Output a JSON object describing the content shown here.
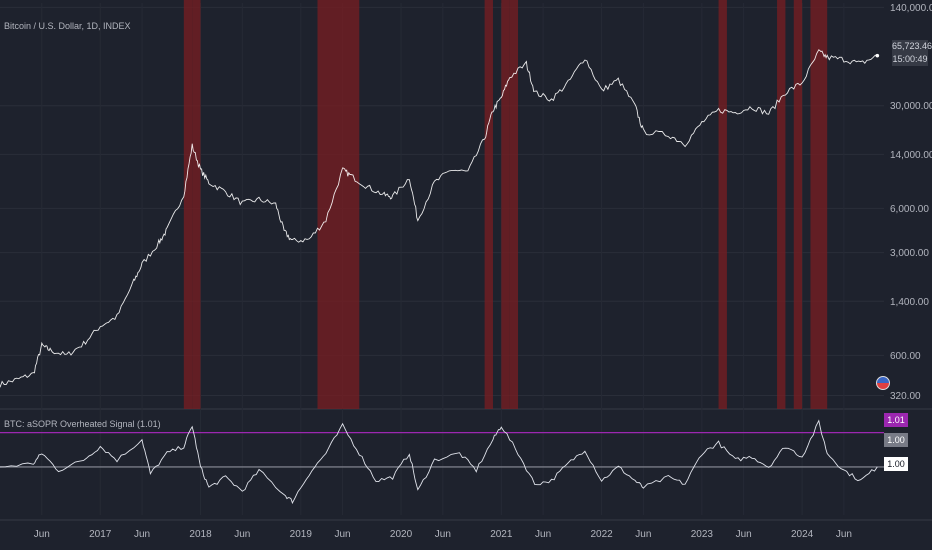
{
  "main_title": "Bitcoin / U.S. Dollar, 1D, INDEX",
  "indicator_title": "BTC: aSOPR Overheated Signal (1.01)",
  "price_tag": {
    "price": "65,723.46",
    "countdown": "15:00:49"
  },
  "indicator_tags": [
    "1.01",
    "1.00",
    "1.00"
  ],
  "colors": {
    "background": "#1e222d",
    "price_line": "#ffffff",
    "signal_band": "#7a1e22",
    "threshold_line": "#9c27b0",
    "baseline": "#787b86"
  },
  "chart_data": [
    {
      "type": "line",
      "name": "price",
      "scale": "log",
      "y_ticks": [
        "320.00",
        "600.00",
        "1,400.00",
        "3,000.00",
        "6,000.00",
        "14,000.00",
        "30,000.00",
        "140,000.00"
      ],
      "y_tick_values": [
        320,
        600,
        1400,
        3000,
        6000,
        14000,
        30000,
        140000
      ],
      "x_ticks": [
        "Jun",
        "2017",
        "Jun",
        "2018",
        "Jun",
        "2019",
        "Jun",
        "2020",
        "Jun",
        "2021",
        "Jun",
        "2022",
        "Jun",
        "2023",
        "Jun",
        "2024",
        "Jun"
      ],
      "x_tick_dates": [
        "2016-06",
        "2017-01",
        "2017-06",
        "2018-01",
        "2018-06",
        "2019-01",
        "2019-06",
        "2020-01",
        "2020-06",
        "2021-01",
        "2021-06",
        "2022-01",
        "2022-06",
        "2023-01",
        "2023-06",
        "2024-01",
        "2024-06"
      ],
      "x_range": [
        "2016-01",
        "2024-10"
      ],
      "points": [
        [
          "2016-01",
          380
        ],
        [
          "2016-03",
          410
        ],
        [
          "2016-05",
          450
        ],
        [
          "2016-06",
          700
        ],
        [
          "2016-07",
          650
        ],
        [
          "2016-09",
          600
        ],
        [
          "2016-11",
          720
        ],
        [
          "2017-01",
          950
        ],
        [
          "2017-03",
          1100
        ],
        [
          "2017-05",
          1900
        ],
        [
          "2017-06",
          2500
        ],
        [
          "2017-08",
          3500
        ],
        [
          "2017-09",
          4300
        ],
        [
          "2017-11",
          7500
        ],
        [
          "2017-12",
          16000
        ],
        [
          "2018-01",
          11000
        ],
        [
          "2018-02",
          9000
        ],
        [
          "2018-04",
          7800
        ],
        [
          "2018-06",
          6500
        ],
        [
          "2018-08",
          6900
        ],
        [
          "2018-10",
          6400
        ],
        [
          "2018-11",
          4200
        ],
        [
          "2018-12",
          3600
        ],
        [
          "2019-02",
          3700
        ],
        [
          "2019-04",
          5000
        ],
        [
          "2019-06",
          11000
        ],
        [
          "2019-07",
          10000
        ],
        [
          "2019-09",
          8400
        ],
        [
          "2019-11",
          7400
        ],
        [
          "2019-12",
          7200
        ],
        [
          "2020-02",
          9700
        ],
        [
          "2020-03",
          5000
        ],
        [
          "2020-05",
          9000
        ],
        [
          "2020-07",
          11000
        ],
        [
          "2020-09",
          10600
        ],
        [
          "2020-11",
          18000
        ],
        [
          "2020-12",
          28000
        ],
        [
          "2021-01",
          34000
        ],
        [
          "2021-02",
          47000
        ],
        [
          "2021-04",
          58000
        ],
        [
          "2021-05",
          37000
        ],
        [
          "2021-07",
          33000
        ],
        [
          "2021-09",
          43000
        ],
        [
          "2021-11",
          64000
        ],
        [
          "2022-01",
          38000
        ],
        [
          "2022-03",
          45000
        ],
        [
          "2022-05",
          30000
        ],
        [
          "2022-06",
          20000
        ],
        [
          "2022-09",
          19000
        ],
        [
          "2022-11",
          16500
        ],
        [
          "2023-01",
          23000
        ],
        [
          "2023-03",
          28000
        ],
        [
          "2023-05",
          27000
        ],
        [
          "2023-07",
          29500
        ],
        [
          "2023-09",
          26500
        ],
        [
          "2023-11",
          37000
        ],
        [
          "2024-01",
          43000
        ],
        [
          "2024-03",
          70000
        ],
        [
          "2024-04",
          64000
        ],
        [
          "2024-06",
          62000
        ],
        [
          "2024-08",
          58000
        ],
        [
          "2024-10",
          65723
        ]
      ]
    },
    {
      "type": "line",
      "name": "indicator",
      "y_ticks": [
        "1.01",
        "1.00",
        "1.00"
      ],
      "threshold": 1.01,
      "baseline": 1.0,
      "points": [
        [
          "2016-01",
          1.0
        ],
        [
          "2016-05",
          1.001
        ],
        [
          "2016-06",
          1.004
        ],
        [
          "2016-08",
          0.999
        ],
        [
          "2016-11",
          1.002
        ],
        [
          "2017-01",
          1.006
        ],
        [
          "2017-03",
          1.002
        ],
        [
          "2017-06",
          1.008
        ],
        [
          "2017-07",
          0.998
        ],
        [
          "2017-09",
          1.004
        ],
        [
          "2017-11",
          1.006
        ],
        [
          "2017-12",
          1.012
        ],
        [
          "2018-01",
          1.0
        ],
        [
          "2018-02",
          0.994
        ],
        [
          "2018-04",
          0.997
        ],
        [
          "2018-06",
          0.993
        ],
        [
          "2018-08",
          0.999
        ],
        [
          "2018-11",
          0.992
        ],
        [
          "2018-12",
          0.99
        ],
        [
          "2019-02",
          0.998
        ],
        [
          "2019-04",
          1.004
        ],
        [
          "2019-06",
          1.012
        ],
        [
          "2019-08",
          1.004
        ],
        [
          "2019-10",
          0.996
        ],
        [
          "2019-12",
          0.997
        ],
        [
          "2020-02",
          1.004
        ],
        [
          "2020-03",
          0.993
        ],
        [
          "2020-05",
          1.002
        ],
        [
          "2020-08",
          1.004
        ],
        [
          "2020-10",
          0.999
        ],
        [
          "2020-12",
          1.008
        ],
        [
          "2021-01",
          1.012
        ],
        [
          "2021-03",
          1.004
        ],
        [
          "2021-05",
          0.995
        ],
        [
          "2021-07",
          0.996
        ],
        [
          "2021-09",
          1.001
        ],
        [
          "2021-11",
          1.005
        ],
        [
          "2022-01",
          0.996
        ],
        [
          "2022-03",
          1.0
        ],
        [
          "2022-05",
          0.996
        ],
        [
          "2022-06",
          0.994
        ],
        [
          "2022-09",
          0.997
        ],
        [
          "2022-11",
          0.995
        ],
        [
          "2023-01",
          1.004
        ],
        [
          "2023-03",
          1.007
        ],
        [
          "2023-05",
          1.002
        ],
        [
          "2023-07",
          1.003
        ],
        [
          "2023-09",
          1.0
        ],
        [
          "2023-11",
          1.006
        ],
        [
          "2024-01",
          1.003
        ],
        [
          "2024-03",
          1.013
        ],
        [
          "2024-04",
          1.004
        ],
        [
          "2024-06",
          0.999
        ],
        [
          "2024-08",
          0.996
        ],
        [
          "2024-10",
          1.0
        ]
      ]
    }
  ],
  "signal_periods": [
    [
      "2017-11",
      "2017-12"
    ],
    [
      "2017-12",
      "2018-01"
    ],
    [
      "2019-03",
      "2019-08"
    ],
    [
      "2020-11",
      "2020-12"
    ],
    [
      "2021-01",
      "2021-02"
    ],
    [
      "2021-02",
      "2021-03"
    ],
    [
      "2023-03",
      "2023-04"
    ],
    [
      "2023-10",
      "2023-11"
    ],
    [
      "2023-12",
      "2024-01"
    ],
    [
      "2024-02",
      "2024-04"
    ]
  ]
}
